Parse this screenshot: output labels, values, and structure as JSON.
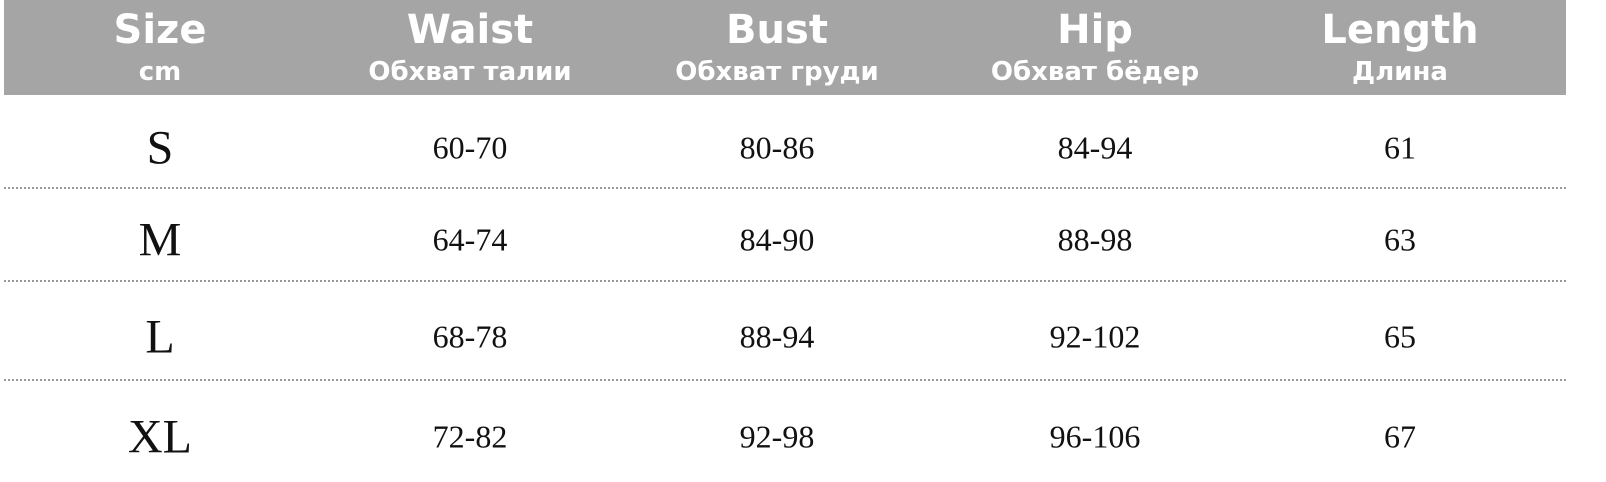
{
  "table": {
    "columns": [
      {
        "title": "Size",
        "subtitle": "cm"
      },
      {
        "title": "Waist",
        "subtitle": "Обхват талии"
      },
      {
        "title": "Bust",
        "subtitle": "Обхват груди"
      },
      {
        "title": "Hip",
        "subtitle": "Обхват бёдер"
      },
      {
        "title": "Length",
        "subtitle": "Длина"
      }
    ],
    "rows": [
      [
        "S",
        "60-70",
        "80-86",
        "84-94",
        "61"
      ],
      [
        "M",
        "64-74",
        "84-90",
        "88-98",
        "63"
      ],
      [
        "L",
        "68-78",
        "88-94",
        "92-102",
        "65"
      ],
      [
        "XL",
        "72-82",
        "92-98",
        "96-106",
        "67"
      ]
    ]
  }
}
